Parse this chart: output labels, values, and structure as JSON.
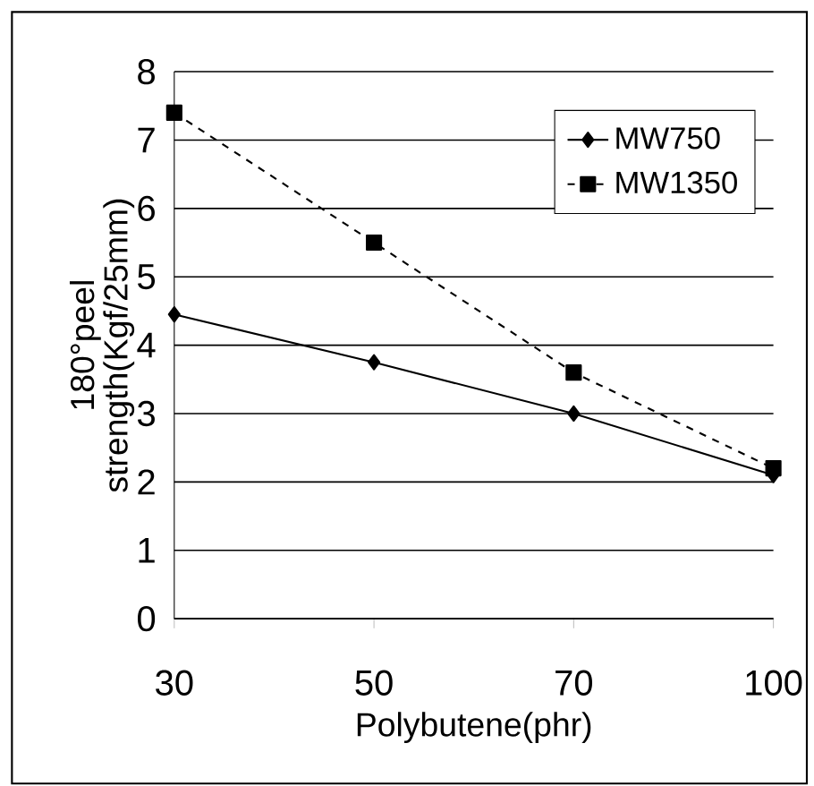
{
  "chart_data": {
    "type": "line",
    "xlabel": "Polybutene(phr)",
    "ylabel": "180°peel strength(Kgf/25mm)",
    "categories": [
      "30",
      "50",
      "70",
      "100"
    ],
    "series": [
      {
        "name": "MW750",
        "color": "#000000",
        "values": [
          4.45,
          3.75,
          3.0,
          2.1
        ],
        "marker": "diamond",
        "line_style": "solid"
      },
      {
        "name": "MW1350",
        "color": "#000000",
        "values": [
          7.4,
          5.5,
          3.6,
          2.2
        ],
        "marker": "square",
        "line_style": "dashed"
      }
    ],
    "ylim": [
      0,
      8
    ],
    "yticks": [
      0,
      1,
      2,
      3,
      4,
      5,
      6,
      7,
      8
    ],
    "grid": "y",
    "legend": "top right"
  }
}
